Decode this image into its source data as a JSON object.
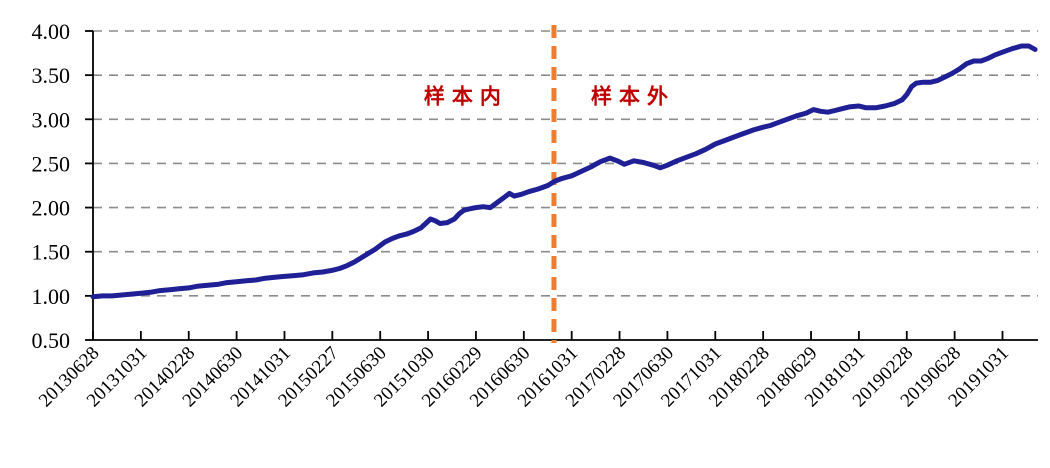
{
  "chart_data": {
    "type": "line",
    "title": "",
    "xlabel": "",
    "ylabel": "",
    "ylim": [
      0.5,
      4.0
    ],
    "ytick_step": 0.5,
    "ytick_labels": [
      "0.50",
      "1.00",
      "1.50",
      "2.00",
      "2.50",
      "3.00",
      "3.50",
      "4.00"
    ],
    "x_tick_labels": [
      "20130628",
      "20131031",
      "20140228",
      "20140630",
      "20141031",
      "20150227",
      "20150630",
      "20151030",
      "20160229",
      "20160630",
      "20161031",
      "20170228",
      "20170630",
      "20171031",
      "20180228",
      "20180629",
      "20181031",
      "20190228",
      "20190628",
      "20191031"
    ],
    "x_unit": "tick-index (0 = 20130628, 19 = 20191031)",
    "grid": "horizontal-dashed",
    "legend": "none",
    "colors": {
      "line": "#1F2096",
      "grid": "#8C8C8C",
      "axis": "#000000",
      "divider": "#ED7D31",
      "annotation": "#C00000"
    },
    "series": [
      {
        "name": "net-value-curve",
        "points": [
          [
            0,
            0.99
          ],
          [
            0.2,
            1.0
          ],
          [
            0.4,
            1.0
          ],
          [
            0.6,
            1.01
          ],
          [
            0.8,
            1.02
          ],
          [
            1.0,
            1.03
          ],
          [
            1.2,
            1.04
          ],
          [
            1.4,
            1.06
          ],
          [
            1.6,
            1.07
          ],
          [
            1.8,
            1.08
          ],
          [
            2.0,
            1.09
          ],
          [
            2.2,
            1.11
          ],
          [
            2.4,
            1.12
          ],
          [
            2.6,
            1.13
          ],
          [
            2.8,
            1.15
          ],
          [
            3.0,
            1.16
          ],
          [
            3.2,
            1.17
          ],
          [
            3.4,
            1.18
          ],
          [
            3.6,
            1.2
          ],
          [
            3.8,
            1.21
          ],
          [
            4.0,
            1.22
          ],
          [
            4.2,
            1.23
          ],
          [
            4.4,
            1.24
          ],
          [
            4.6,
            1.26
          ],
          [
            4.8,
            1.27
          ],
          [
            5.0,
            1.29
          ],
          [
            5.15,
            1.31
          ],
          [
            5.3,
            1.34
          ],
          [
            5.45,
            1.38
          ],
          [
            5.6,
            1.43
          ],
          [
            5.75,
            1.48
          ],
          [
            5.9,
            1.53
          ],
          [
            6.0,
            1.57
          ],
          [
            6.1,
            1.61
          ],
          [
            6.25,
            1.65
          ],
          [
            6.4,
            1.68
          ],
          [
            6.55,
            1.7
          ],
          [
            6.7,
            1.73
          ],
          [
            6.85,
            1.77
          ],
          [
            6.95,
            1.82
          ],
          [
            7.05,
            1.87
          ],
          [
            7.15,
            1.85
          ],
          [
            7.25,
            1.82
          ],
          [
            7.4,
            1.83
          ],
          [
            7.55,
            1.87
          ],
          [
            7.65,
            1.93
          ],
          [
            7.75,
            1.97
          ],
          [
            7.9,
            1.99
          ],
          [
            8.0,
            2.0
          ],
          [
            8.15,
            2.01
          ],
          [
            8.3,
            2.0
          ],
          [
            8.45,
            2.06
          ],
          [
            8.6,
            2.12
          ],
          [
            8.7,
            2.16
          ],
          [
            8.8,
            2.13
          ],
          [
            8.95,
            2.15
          ],
          [
            9.1,
            2.18
          ],
          [
            9.3,
            2.21
          ],
          [
            9.5,
            2.25
          ],
          [
            9.65,
            2.3
          ],
          [
            9.8,
            2.33
          ],
          [
            10.0,
            2.36
          ],
          [
            10.2,
            2.41
          ],
          [
            10.4,
            2.46
          ],
          [
            10.6,
            2.52
          ],
          [
            10.8,
            2.56
          ],
          [
            10.95,
            2.53
          ],
          [
            11.1,
            2.49
          ],
          [
            11.3,
            2.53
          ],
          [
            11.5,
            2.51
          ],
          [
            11.7,
            2.48
          ],
          [
            11.85,
            2.45
          ],
          [
            12.0,
            2.48
          ],
          [
            12.2,
            2.53
          ],
          [
            12.4,
            2.57
          ],
          [
            12.6,
            2.61
          ],
          [
            12.8,
            2.66
          ],
          [
            13.0,
            2.72
          ],
          [
            13.2,
            2.76
          ],
          [
            13.4,
            2.8
          ],
          [
            13.6,
            2.84
          ],
          [
            13.8,
            2.88
          ],
          [
            14.0,
            2.91
          ],
          [
            14.15,
            2.93
          ],
          [
            14.3,
            2.96
          ],
          [
            14.5,
            3.0
          ],
          [
            14.7,
            3.04
          ],
          [
            14.9,
            3.07
          ],
          [
            15.05,
            3.11
          ],
          [
            15.2,
            3.09
          ],
          [
            15.35,
            3.08
          ],
          [
            15.5,
            3.1
          ],
          [
            15.65,
            3.12
          ],
          [
            15.8,
            3.14
          ],
          [
            16.0,
            3.15
          ],
          [
            16.15,
            3.13
          ],
          [
            16.35,
            3.13
          ],
          [
            16.55,
            3.15
          ],
          [
            16.75,
            3.18
          ],
          [
            16.9,
            3.22
          ],
          [
            17.0,
            3.28
          ],
          [
            17.1,
            3.37
          ],
          [
            17.2,
            3.41
          ],
          [
            17.35,
            3.42
          ],
          [
            17.5,
            3.42
          ],
          [
            17.65,
            3.44
          ],
          [
            17.8,
            3.48
          ],
          [
            17.95,
            3.52
          ],
          [
            18.1,
            3.57
          ],
          [
            18.25,
            3.63
          ],
          [
            18.4,
            3.66
          ],
          [
            18.55,
            3.66
          ],
          [
            18.7,
            3.69
          ],
          [
            18.85,
            3.73
          ],
          [
            19.0,
            3.76
          ],
          [
            19.2,
            3.8
          ],
          [
            19.4,
            3.83
          ],
          [
            19.55,
            3.83
          ],
          [
            19.68,
            3.79
          ]
        ]
      }
    ],
    "divider": {
      "x": 9.63,
      "style": "dashed",
      "color": "#ED7D31"
    },
    "annotations": [
      {
        "text": "样本内",
        "x": 7.79,
        "y": 3.27,
        "color": "#C00000"
      },
      {
        "text": "样本外",
        "x": 11.28,
        "y": 3.27,
        "color": "#C00000"
      }
    ]
  }
}
